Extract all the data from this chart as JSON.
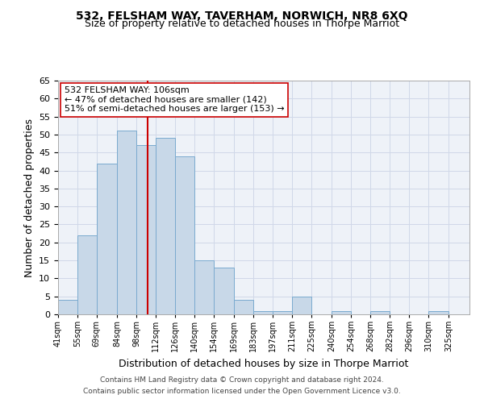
{
  "title": "532, FELSHAM WAY, TAVERHAM, NORWICH, NR8 6XQ",
  "subtitle": "Size of property relative to detached houses in Thorpe Marriot",
  "xlabel": "Distribution of detached houses by size in Thorpe Marriot",
  "ylabel": "Number of detached properties",
  "footer1": "Contains HM Land Registry data © Crown copyright and database right 2024.",
  "footer2": "Contains public sector information licensed under the Open Government Licence v3.0.",
  "bin_labels": [
    "41sqm",
    "55sqm",
    "69sqm",
    "84sqm",
    "98sqm",
    "112sqm",
    "126sqm",
    "140sqm",
    "154sqm",
    "169sqm",
    "183sqm",
    "197sqm",
    "211sqm",
    "225sqm",
    "240sqm",
    "254sqm",
    "268sqm",
    "282sqm",
    "296sqm",
    "310sqm",
    "325sqm"
  ],
  "bar_values": [
    4,
    22,
    42,
    51,
    47,
    49,
    44,
    15,
    13,
    4,
    1,
    1,
    5,
    0,
    1,
    0,
    1,
    0,
    0,
    1,
    0
  ],
  "bar_color": "#c8d8e8",
  "bar_edge_color": "#7aaacf",
  "property_line_x": 106,
  "bin_edges": [
    41,
    55,
    69,
    84,
    98,
    112,
    126,
    140,
    154,
    169,
    183,
    197,
    211,
    225,
    240,
    254,
    268,
    282,
    296,
    310,
    325
  ],
  "annotation_line1": "532 FELSHAM WAY: 106sqm",
  "annotation_line2": "← 47% of detached houses are smaller (142)",
  "annotation_line3": "51% of semi-detached houses are larger (153) →",
  "vline_color": "#cc0000",
  "ylim": [
    0,
    65
  ],
  "yticks": [
    0,
    5,
    10,
    15,
    20,
    25,
    30,
    35,
    40,
    45,
    50,
    55,
    60,
    65
  ],
  "title_fontsize": 10,
  "subtitle_fontsize": 9,
  "ylabel_fontsize": 9,
  "xlabel_fontsize": 9,
  "tick_fontsize": 7,
  "annotation_fontsize": 8,
  "footer_fontsize": 6.5,
  "bg_color": "#eef2f8",
  "grid_color": "#d0d8e8"
}
